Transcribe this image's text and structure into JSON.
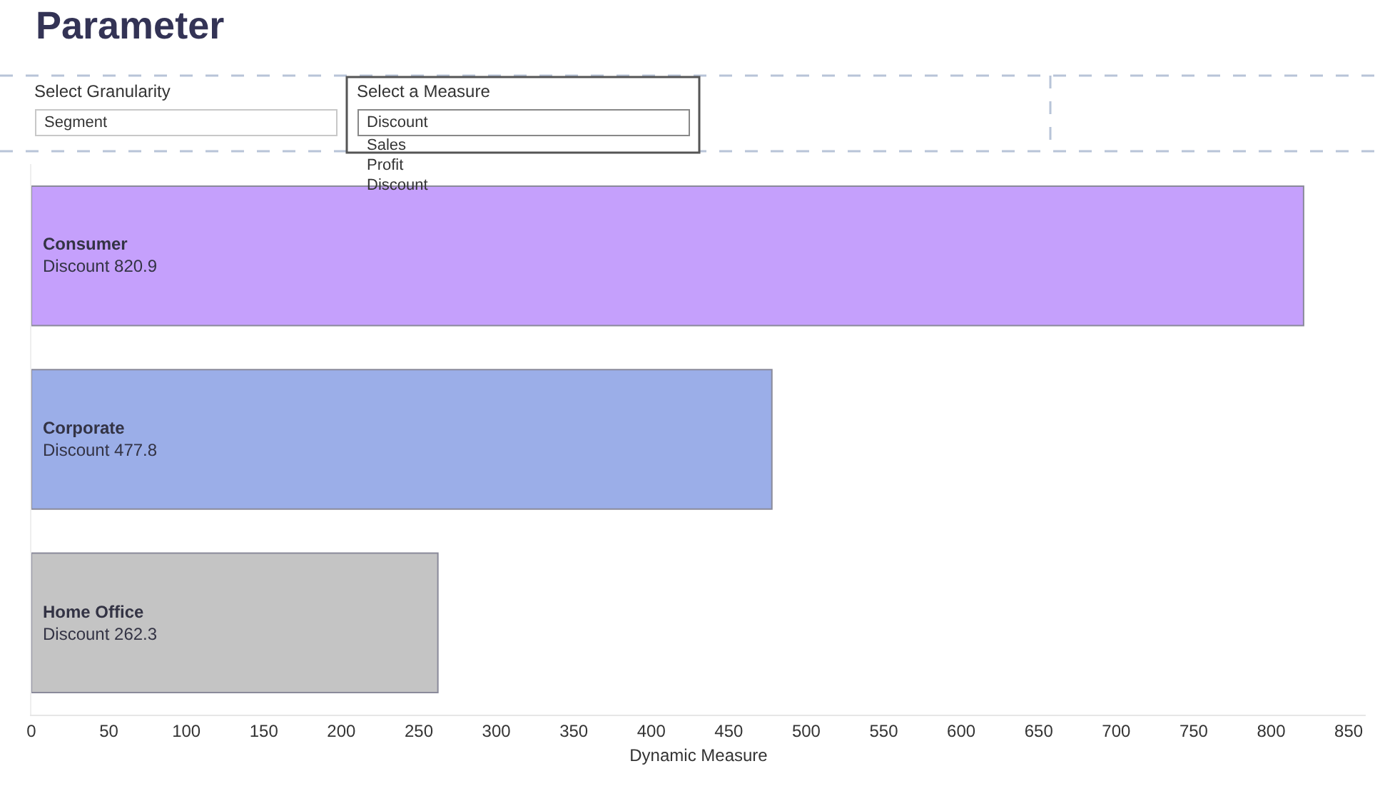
{
  "chart_data": {
    "type": "bar",
    "orientation": "horizontal",
    "title": "Parameter",
    "xlabel": "Dynamic Measure",
    "categories": [
      "Consumer",
      "Corporate",
      "Home Office"
    ],
    "values": [
      820.9,
      477.8,
      262.3
    ],
    "colors": [
      "#c5a0fc",
      "#9baee8",
      "#c4c4c4"
    ],
    "value_labels": [
      "Discount 820.9",
      "Discount 477.8",
      "Discount 262.3"
    ],
    "xlim": [
      0,
      861
    ],
    "xticks": [
      0,
      50,
      100,
      150,
      200,
      250,
      300,
      350,
      400,
      450,
      500,
      550,
      600,
      650,
      700,
      750,
      800,
      850
    ],
    "tick_labels": "x",
    "legend": false,
    "annotations": [
      "Select Granularity",
      "Segment",
      "Select a Measure",
      "Discount",
      "Sales",
      "Profit",
      "Discount"
    ]
  }
}
